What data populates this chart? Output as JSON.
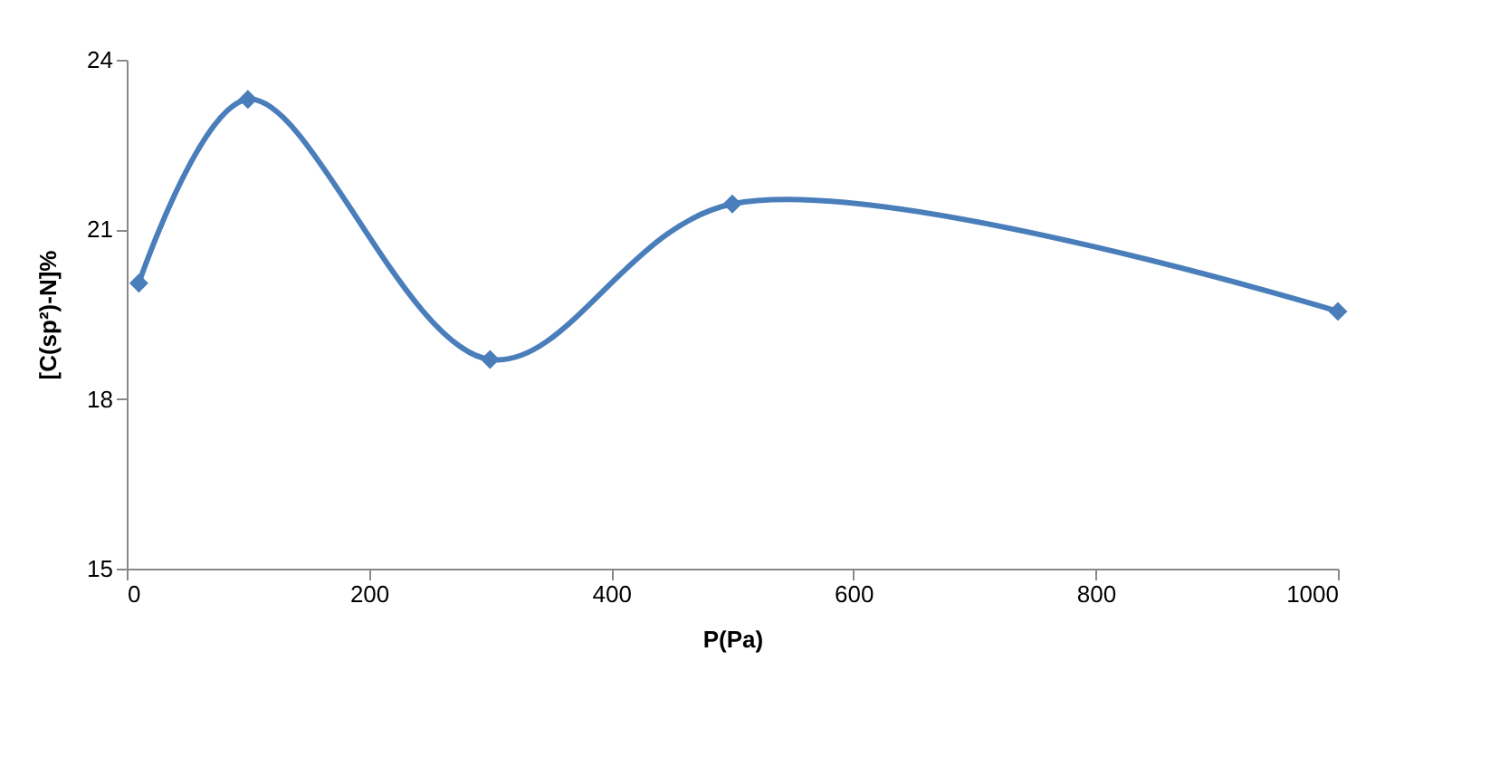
{
  "chart_data": {
    "type": "line",
    "xlabel": "P(Pa)",
    "ylabel": "[C(sp²)-N]%",
    "x": [
      10,
      100,
      300,
      500,
      1000
    ],
    "series": [
      {
        "color": "#4a7ebb",
        "values": [
          20.05,
          23.3,
          18.7,
          21.45,
          19.55
        ]
      }
    ],
    "xlim": [
      0,
      1000
    ],
    "xticks": [
      0,
      200,
      400,
      600,
      800,
      1000
    ],
    "ylim": [
      15,
      24
    ],
    "yticks": [
      15,
      18,
      21,
      24
    ],
    "grid": false,
    "legend": false,
    "marker": "diamond",
    "line_style": "solid"
  }
}
